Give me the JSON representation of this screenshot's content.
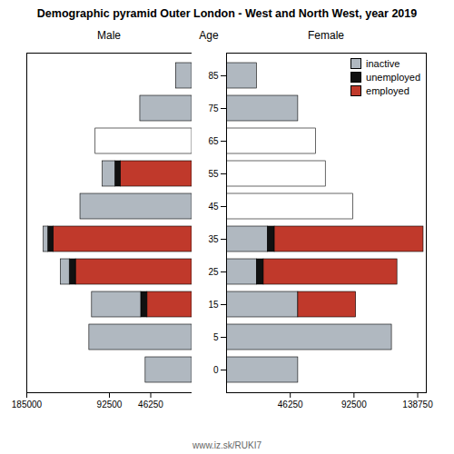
{
  "title": "Demographic pyramid Outer London - West and North West, year 2019",
  "annotations": [
    "www.iz.sk/RUKI7"
  ],
  "chart_data": [
    {
      "type": "bar",
      "orientation": "horizontal",
      "stacked": true,
      "title": "Male",
      "categories": [
        "0",
        "5",
        "15",
        "25",
        "35",
        "45",
        "55",
        "65",
        "75",
        "85"
      ],
      "series": [
        {
          "name": "employed",
          "color": "#c0392b",
          "values": [
            0,
            0,
            50000,
            130000,
            155000,
            0,
            80000,
            0,
            0,
            0
          ]
        },
        {
          "name": "unemployed",
          "color": "#111111",
          "values": [
            0,
            0,
            7000,
            7000,
            6000,
            0,
            6000,
            0,
            0,
            0
          ]
        },
        {
          "name": "inactive",
          "color": "#b0b8c0",
          "values": [
            52000,
            115000,
            55000,
            10000,
            5000,
            125000,
            14000,
            0,
            58000,
            18000
          ]
        },
        {
          "color": "white",
          "values": [
            0,
            0,
            0,
            0,
            0,
            0,
            0,
            108000,
            0,
            0
          ]
        }
      ],
      "xlim": [
        185000,
        0
      ],
      "xticks": [
        185000,
        92500,
        46250
      ],
      "tick_labels": "x"
    },
    {
      "type": "bar",
      "orientation": "horizontal",
      "stacked": true,
      "title": "Female",
      "ylabel": "Age",
      "categories": [
        "0",
        "5",
        "15",
        "25",
        "35",
        "45",
        "55",
        "65",
        "75",
        "85"
      ],
      "series": [
        {
          "name": "inactive",
          "color": "#b0b8c0",
          "values": [
            52000,
            120000,
            52000,
            22000,
            30000,
            0,
            0,
            0,
            52000,
            22000
          ]
        },
        {
          "name": "unemployed",
          "color": "#111111",
          "values": [
            0,
            0,
            0,
            5000,
            5000,
            0,
            0,
            0,
            0,
            0
          ]
        },
        {
          "name": "employed",
          "color": "#c0392b",
          "values": [
            0,
            0,
            42000,
            97000,
            108000,
            0,
            0,
            0,
            0,
            0
          ]
        },
        {
          "color": "white",
          "values": [
            0,
            0,
            0,
            0,
            0,
            92000,
            72000,
            65000,
            0,
            0
          ]
        }
      ],
      "xlim": [
        0,
        145000
      ],
      "xticks": [
        46250,
        92500,
        138750
      ],
      "legend": "upper right"
    }
  ]
}
